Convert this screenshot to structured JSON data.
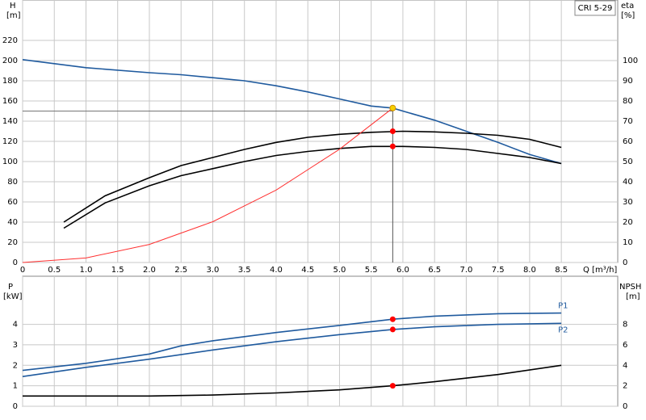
{
  "chart_data": [
    {
      "type": "line",
      "title": "CRI 5-29",
      "y_label": "H",
      "y_unit": "[m]",
      "y2_label": "eta",
      "y2_unit": "[%]",
      "x_label": "Q [m³/h]",
      "xlim": [
        0,
        9.39
      ],
      "xticks": [
        0,
        0.5,
        {
          "value": 1,
          "label": "1.0"
        },
        1.5,
        {
          "value": 2,
          "label": "2.0"
        },
        2.5,
        {
          "value": 3,
          "label": "3.0"
        },
        3.5,
        {
          "value": 4,
          "label": "4.0"
        },
        4.5,
        {
          "value": 5,
          "label": "5.0"
        },
        5.5,
        {
          "value": 6,
          "label": "6.0"
        },
        6.5,
        {
          "value": 7,
          "label": "7.0"
        },
        7.5,
        {
          "value": 8,
          "label": "8.0"
        },
        8.5
      ],
      "ylim": [
        0,
        260
      ],
      "yticks": [
        0,
        20,
        40,
        60,
        80,
        100,
        120,
        140,
        160,
        180,
        200,
        220
      ],
      "y2lim": [
        0,
        130
      ],
      "y2ticks": [
        0,
        10,
        20,
        30,
        40,
        50,
        60,
        70,
        80,
        90,
        100
      ],
      "grid": true,
      "series": [
        {
          "color": "#1f5a9e",
          "axis": "y",
          "x": [
            0,
            1,
            2,
            2.5,
            3,
            3.5,
            4,
            4.5,
            5,
            5.5,
            5.84,
            6,
            6.5,
            7,
            7.5,
            8,
            8.5
          ],
          "values": [
            201,
            193,
            188,
            186,
            183,
            180,
            175,
            169,
            162,
            155,
            153,
            150,
            141,
            130,
            119,
            107,
            98
          ]
        },
        {
          "color": "#000000",
          "axis": "y2",
          "x": [
            0.65,
            1.3,
            2,
            2.5,
            3,
            3.5,
            4,
            4.5,
            5,
            5.5,
            6,
            6.5,
            7,
            7.5,
            8,
            8.5
          ],
          "values": [
            20,
            33,
            42,
            48,
            52,
            56,
            59.5,
            62,
            63.5,
            64.5,
            65,
            64.7,
            64,
            63,
            61,
            57
          ]
        },
        {
          "color": "#000000",
          "axis": "y2",
          "x": [
            0.65,
            1.3,
            2,
            2.5,
            3,
            3.5,
            4,
            4.5,
            5,
            5.5,
            6,
            6.5,
            7,
            7.5,
            8,
            8.5
          ],
          "values": [
            17,
            29.5,
            38,
            43,
            46.5,
            50,
            53,
            55,
            56.5,
            57.5,
            57.5,
            57,
            56,
            54,
            52,
            49
          ]
        },
        {
          "color": "#ff3030",
          "axis": "y",
          "x": [
            0,
            1,
            2,
            3,
            4,
            5,
            5.84
          ],
          "values": [
            0,
            4.5,
            17.9,
            40.4,
            71.8,
            112.2,
            153
          ]
        }
      ],
      "reference_lines": {
        "x": 5.84,
        "y": 150
      },
      "points": [
        {
          "x": 5.84,
          "y": 153,
          "axis": "y",
          "color": "#f5d000"
        },
        {
          "x": 5.84,
          "y": 65,
          "axis": "y2",
          "color": "#ff0000"
        },
        {
          "x": 5.84,
          "y": 57.5,
          "axis": "y2",
          "color": "#ff0000"
        }
      ]
    },
    {
      "type": "line",
      "y_label": "P",
      "y_unit": "[kW]",
      "y2_label": "NPSH",
      "y2_unit": "[m]",
      "xlim": [
        0,
        9.39
      ],
      "ylim": [
        0,
        6.35
      ],
      "yticks": [
        0,
        1,
        2,
        3,
        4
      ],
      "y2lim": [
        0,
        12.7
      ],
      "y2ticks": [
        0,
        2,
        4,
        6,
        8
      ],
      "grid": true,
      "series": [
        {
          "name": "P1",
          "color": "#1f5a9e",
          "axis": "y",
          "x": [
            0,
            1,
            2,
            2.5,
            3,
            4,
            5,
            5.84,
            6.5,
            7.5,
            8.5
          ],
          "values": [
            1.75,
            2.1,
            2.55,
            2.95,
            3.2,
            3.6,
            3.95,
            4.25,
            4.4,
            4.52,
            4.55
          ]
        },
        {
          "name": "P2",
          "color": "#1f5a9e",
          "axis": "y",
          "x": [
            0,
            1,
            2,
            3,
            4,
            5,
            5.84,
            6.5,
            7.5,
            8.5
          ],
          "values": [
            1.45,
            1.9,
            2.3,
            2.75,
            3.15,
            3.5,
            3.75,
            3.88,
            4.0,
            4.05
          ]
        },
        {
          "color": "#000000",
          "axis": "y2",
          "x": [
            0,
            1,
            2,
            2.5,
            3,
            4,
            5,
            5.84,
            6.5,
            7.5,
            8.5
          ],
          "values": [
            1.0,
            1.0,
            1.0,
            1.05,
            1.1,
            1.3,
            1.6,
            2.0,
            2.4,
            3.1,
            4.0
          ]
        }
      ],
      "points": [
        {
          "x": 5.84,
          "y": 4.25,
          "axis": "y",
          "color": "#ff0000"
        },
        {
          "x": 5.84,
          "y": 3.75,
          "axis": "y",
          "color": "#ff0000"
        },
        {
          "x": 5.84,
          "y": 2.0,
          "axis": "y2",
          "color": "#ff0000"
        }
      ]
    }
  ]
}
